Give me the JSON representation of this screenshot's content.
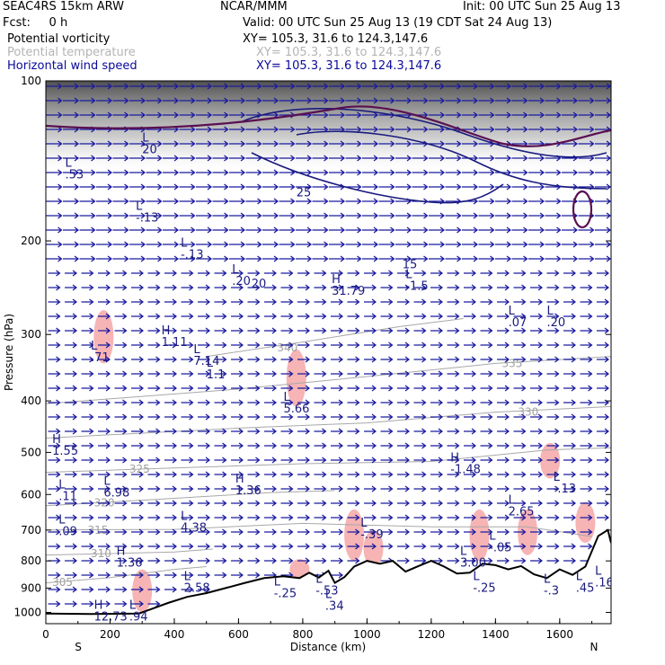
{
  "header": {
    "model": "SEAC4RS 15km ARW",
    "center": "NCAR/MMM",
    "init": "Init: 00 UTC Sun 25 Aug 13",
    "fcst": "Fcst:     0 h",
    "valid": "Valid: 00 UTC Sun 25 Aug 13 (19 CDT Sat 24 Aug 13)",
    "fields": [
      {
        "name": "Potential vorticity",
        "xy": "XY= 105.3, 31.6 to 124.3,147.6",
        "color": "#000000"
      },
      {
        "name": "Potential temperature",
        "xy": "XY= 105.3, 31.6 to 124.3,147.6",
        "color": "#b4b4b4"
      },
      {
        "name": "Horizontal wind speed",
        "xy": "XY= 105.3, 31.6 to 124.3,147.6",
        "color": "#0a0a9a"
      }
    ]
  },
  "chart_data": {
    "type": "cross-section",
    "xlabel": "Distance (km)",
    "ylabel": "Pressure (hPa)",
    "xlim": [
      0,
      1760
    ],
    "ylim": [
      1050,
      100
    ],
    "y_scale": "log-pressure",
    "x_ticks": [
      0,
      200,
      400,
      600,
      800,
      1000,
      1200,
      1400,
      1600
    ],
    "y_ticks": [
      100,
      200,
      300,
      400,
      500,
      600,
      700,
      800,
      900,
      1000
    ],
    "endpoints": {
      "left": "S",
      "right": "N"
    },
    "colors": {
      "pv_positive_fill": "#f7b4b4",
      "wind_arrows": "#1a1aa0",
      "isentropes": "#a8a8a8",
      "speed_contours": "#1a1a80",
      "pv_contours": "#5a1050",
      "terrain": "#000000"
    },
    "terrain": [
      {
        "x": 0,
        "p": 1005
      },
      {
        "x": 140,
        "p": 1007
      },
      {
        "x": 290,
        "p": 1005
      },
      {
        "x": 330,
        "p": 985
      },
      {
        "x": 380,
        "p": 960
      },
      {
        "x": 440,
        "p": 935
      },
      {
        "x": 500,
        "p": 920
      },
      {
        "x": 560,
        "p": 900
      },
      {
        "x": 620,
        "p": 880
      },
      {
        "x": 680,
        "p": 862
      },
      {
        "x": 740,
        "p": 855
      },
      {
        "x": 790,
        "p": 862
      },
      {
        "x": 820,
        "p": 842
      },
      {
        "x": 850,
        "p": 860
      },
      {
        "x": 880,
        "p": 835
      },
      {
        "x": 900,
        "p": 880
      },
      {
        "x": 930,
        "p": 858
      },
      {
        "x": 960,
        "p": 820
      },
      {
        "x": 1000,
        "p": 800
      },
      {
        "x": 1040,
        "p": 810
      },
      {
        "x": 1080,
        "p": 800
      },
      {
        "x": 1120,
        "p": 838
      },
      {
        "x": 1160,
        "p": 818
      },
      {
        "x": 1200,
        "p": 800
      },
      {
        "x": 1240,
        "p": 820
      },
      {
        "x": 1280,
        "p": 845
      },
      {
        "x": 1320,
        "p": 842
      },
      {
        "x": 1360,
        "p": 810
      },
      {
        "x": 1400,
        "p": 815
      },
      {
        "x": 1440,
        "p": 830
      },
      {
        "x": 1480,
        "p": 818
      },
      {
        "x": 1520,
        "p": 848
      },
      {
        "x": 1560,
        "p": 862
      },
      {
        "x": 1600,
        "p": 830
      },
      {
        "x": 1640,
        "p": 850
      },
      {
        "x": 1680,
        "p": 820
      },
      {
        "x": 1720,
        "p": 718
      },
      {
        "x": 1750,
        "p": 700
      },
      {
        "x": 1760,
        "p": 740
      }
    ],
    "isentropes": [
      {
        "theta": "305",
        "points": [
          [
            0,
            880
          ],
          [
            200,
            860
          ],
          [
            400,
            830
          ],
          [
            500,
            820
          ]
        ],
        "label_at": [
          20,
          878
        ]
      },
      {
        "theta": "310",
        "points": [
          [
            0,
            780
          ],
          [
            200,
            775
          ],
          [
            400,
            770
          ],
          [
            520,
            760
          ]
        ],
        "label_at": [
          140,
          775
        ]
      },
      {
        "theta": "315",
        "points": [
          [
            0,
            700
          ],
          [
            400,
            698
          ],
          [
            800,
            680
          ],
          [
            1200,
            690
          ],
          [
            1500,
            690
          ],
          [
            1700,
            720
          ]
        ],
        "label_at": [
          130,
          700
        ]
      },
      {
        "theta": "320",
        "points": [
          [
            0,
            630
          ],
          [
            300,
            615
          ],
          [
            700,
            595
          ],
          [
            900,
            590
          ]
        ],
        "label_at": [
          150,
          622
        ]
      },
      {
        "theta": "325",
        "points": [
          [
            0,
            545
          ],
          [
            400,
            535
          ],
          [
            800,
            525
          ],
          [
            1200,
            520
          ],
          [
            1560,
            495
          ],
          [
            1760,
            490
          ]
        ],
        "label_at": [
          260,
          537
        ]
      },
      {
        "theta": "330",
        "points": [
          [
            0,
            470
          ],
          [
            600,
            450
          ],
          [
            1000,
            440
          ],
          [
            1400,
            420
          ],
          [
            1760,
            410
          ]
        ],
        "label_at": [
          1470,
          420
        ]
      },
      {
        "theta": "335",
        "points": [
          [
            0,
            405
          ],
          [
            600,
            380
          ],
          [
            1000,
            360
          ],
          [
            1400,
            340
          ],
          [
            1760,
            330
          ]
        ],
        "label_at": [
          1420,
          340
        ]
      },
      {
        "theta": "340",
        "points": [
          [
            500,
            330
          ],
          [
            800,
            310
          ],
          [
            1100,
            290
          ],
          [
            1300,
            280
          ]
        ],
        "label_at": [
          720,
          318
        ]
      }
    ],
    "pv_fills": [
      {
        "x": 780,
        "p_top": 320,
        "p_bottom": 410
      },
      {
        "x": 790,
        "p_top": 880,
        "p_bottom": 780
      },
      {
        "x": 960,
        "p_top": 640,
        "p_bottom": 800
      },
      {
        "x": 1020,
        "p_top": 700,
        "p_bottom": 820
      },
      {
        "x": 1350,
        "p_top": 640,
        "p_bottom": 800
      },
      {
        "x": 1500,
        "p_top": 640,
        "p_bottom": 780
      },
      {
        "x": 1680,
        "p_top": 620,
        "p_bottom": 740
      },
      {
        "x": 1570,
        "p_top": 480,
        "p_bottom": 560
      },
      {
        "x": 300,
        "p_top": 830,
        "p_bottom": 1000
      },
      {
        "x": 180,
        "p_top": 270,
        "p_bottom": 340
      }
    ],
    "speed_contours": [
      {
        "value": "25",
        "label_at": [
          780,
          165
        ]
      },
      {
        "value": "15",
        "label_at": [
          1110,
          225
        ]
      },
      {
        "value": "20",
        "label_at": [
          640,
          245
        ]
      }
    ],
    "extremes": [
      {
        "type": "L",
        "value": ".53",
        "x": 60,
        "p": 145
      },
      {
        "type": "L",
        "value": "20",
        "x": 300,
        "p": 130
      },
      {
        "type": "L",
        "value": "-.13",
        "x": 280,
        "p": 175
      },
      {
        "type": "L",
        "value": "-.13",
        "x": 420,
        "p": 205
      },
      {
        "type": "L",
        "value": ".20",
        "x": 580,
        "p": 230
      },
      {
        "type": "H",
        "value": "31.79",
        "x": 890,
        "p": 240
      },
      {
        "type": "L",
        "value": "-1.5",
        "x": 1120,
        "p": 235
      },
      {
        "type": "L",
        "value": ".07",
        "x": 1440,
        "p": 275
      },
      {
        "type": "L",
        "value": ".20",
        "x": 1560,
        "p": 275
      },
      {
        "type": "L",
        "value": ".71",
        "x": 140,
        "p": 320
      },
      {
        "type": "H",
        "value": "1.11",
        "x": 360,
        "p": 300
      },
      {
        "type": "L",
        "value": "7.14",
        "x": 460,
        "p": 325
      },
      {
        "type": "L",
        "value": "1.1",
        "x": 500,
        "p": 345
      },
      {
        "type": "L",
        "value": "5.66",
        "x": 740,
        "p": 400
      },
      {
        "type": "H",
        "value": "1.55",
        "x": 20,
        "p": 480
      },
      {
        "type": "H",
        "value": "-1.48",
        "x": 1260,
        "p": 520
      },
      {
        "type": "L",
        "value": "-.13",
        "x": 1580,
        "p": 565
      },
      {
        "type": "L",
        "value": ".11",
        "x": 40,
        "p": 585
      },
      {
        "type": "L",
        "value": "6.98",
        "x": 180,
        "p": 575
      },
      {
        "type": "H",
        "value": "1.36",
        "x": 590,
        "p": 570
      },
      {
        "type": "L",
        "value": "2.65",
        "x": 1440,
        "p": 625
      },
      {
        "type": "L",
        "value": ".09",
        "x": 40,
        "p": 680
      },
      {
        "type": "L",
        "value": "4.38",
        "x": 420,
        "p": 670
      },
      {
        "type": "L",
        "value": "-.39",
        "x": 980,
        "p": 690
      },
      {
        "type": "L",
        "value": "-.05",
        "x": 1380,
        "p": 730
      },
      {
        "type": "L",
        "value": "3.00",
        "x": 1290,
        "p": 780
      },
      {
        "type": "H",
        "value": "1.36",
        "x": 220,
        "p": 780
      },
      {
        "type": "L",
        "value": "2.58",
        "x": 430,
        "p": 870
      },
      {
        "type": "L",
        "value": "-.25",
        "x": 710,
        "p": 890
      },
      {
        "type": "L",
        "value": "-.53",
        "x": 840,
        "p": 880
      },
      {
        "type": "L",
        "value": ".34",
        "x": 870,
        "p": 940
      },
      {
        "type": "L",
        "value": "-.25",
        "x": 1330,
        "p": 870
      },
      {
        "type": "L",
        "value": "-.3",
        "x": 1550,
        "p": 880
      },
      {
        "type": "L",
        "value": ".45",
        "x": 1650,
        "p": 870
      },
      {
        "type": "L",
        "value": ".16",
        "x": 1710,
        "p": 850
      },
      {
        "type": "H",
        "value": "12.73",
        "x": 150,
        "p": 985
      },
      {
        "type": "L",
        "value": ".94",
        "x": 260,
        "p": 985
      }
    ]
  }
}
